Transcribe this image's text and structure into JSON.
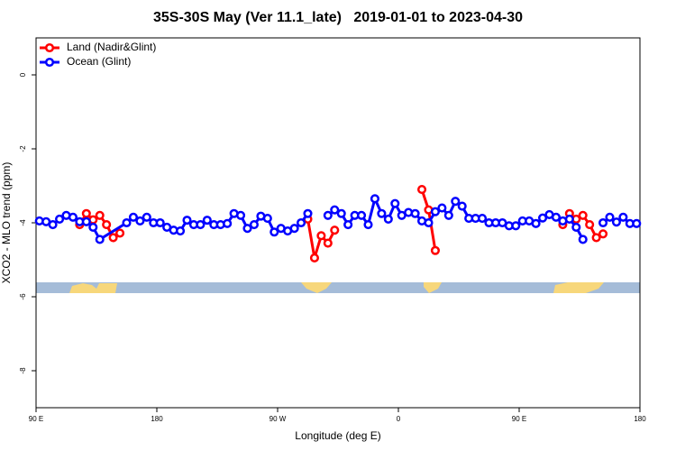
{
  "chart_data": {
    "type": "line",
    "title": "35S-30S May (Ver 11.1_late)   2019-01-01 to 2023-04-30",
    "xlabel": "Longitude (deg E)",
    "ylabel": "XCO2 - MLO trend (ppm)",
    "xlim": [
      90,
      540
    ],
    "xticks": [
      {
        "value": 90,
        "label": "90 E"
      },
      {
        "value": 180,
        "label": "180"
      },
      {
        "value": 270,
        "label": "90 W"
      },
      {
        "value": 360,
        "label": "0"
      },
      {
        "value": 450,
        "label": "90 E"
      },
      {
        "value": 540,
        "label": "180"
      }
    ],
    "ylim": [
      -9,
      1
    ],
    "yticks": [
      0,
      -2,
      -4,
      -6,
      -8
    ],
    "legend": "topleft",
    "series": [
      {
        "name": "Land (Nadir&Glint)",
        "color": "#ff0000",
        "x": [
          122.5,
          127.5,
          132.5,
          137.5,
          142.5,
          147.5,
          152.5,
          157.5,
          292.5,
          297.5,
          302.5,
          307.5,
          312.5,
          317.5,
          377.5,
          382.5,
          387.5,
          392.5,
          482.5,
          487.5,
          492.5,
          497.5,
          502.5,
          507.5,
          512.5
        ],
        "values": [
          -4.05,
          -3.75,
          -3.92,
          -3.8,
          -4.05,
          -4.4,
          -4.28,
          null,
          -3.9,
          -4.95,
          -4.35,
          -4.55,
          -4.2,
          null,
          -3.1,
          -3.65,
          -4.75,
          null,
          -4.05,
          -3.75,
          -3.9,
          -3.8,
          -4.05,
          -4.4,
          -4.3
        ]
      },
      {
        "name": "Ocean (Glint)",
        "color": "#0000ff",
        "x": [
          92.5,
          97.5,
          102.5,
          107.5,
          112.5,
          117.5,
          122.5,
          127.5,
          132.5,
          137.5,
          157.5,
          162.5,
          167.5,
          172.5,
          177.5,
          182.5,
          187.5,
          192.5,
          197.5,
          202.5,
          207.5,
          212.5,
          217.5,
          222.5,
          227.5,
          232.5,
          237.5,
          242.5,
          247.5,
          252.5,
          257.5,
          262.5,
          267.5,
          272.5,
          277.5,
          282.5,
          287.5,
          292.5,
          297.5,
          307.5,
          312.5,
          317.5,
          322.5,
          327.5,
          332.5,
          337.5,
          342.5,
          347.5,
          352.5,
          357.5,
          362.5,
          367.5,
          372.5,
          377.5,
          382.5,
          387.5,
          392.5,
          397.5,
          402.5,
          407.5,
          412.5,
          417.5,
          422.5,
          427.5,
          432.5,
          437.5,
          442.5,
          447.5,
          452.5,
          457.5,
          462.5,
          467.5,
          472.5,
          477.5,
          482.5,
          487.5,
          492.5,
          497.5,
          502.5,
          512.5,
          517.5,
          522.5,
          527.5,
          532.5,
          537.5
        ],
        "values": [
          -3.95,
          -3.97,
          -4.05,
          -3.9,
          -3.8,
          -3.85,
          -3.97,
          -3.97,
          -4.12,
          -4.45,
          -4.0,
          -3.85,
          -3.95,
          -3.85,
          -4.0,
          -4.0,
          -4.12,
          -4.2,
          -4.22,
          -3.93,
          -4.05,
          -4.05,
          -3.93,
          -4.05,
          -4.05,
          -4.02,
          -3.75,
          -3.8,
          -4.15,
          -4.05,
          -3.82,
          -3.88,
          -4.25,
          -4.15,
          -4.22,
          -4.15,
          -4.0,
          -3.75,
          null,
          -3.8,
          -3.65,
          -3.75,
          -4.05,
          -3.8,
          -3.8,
          -4.05,
          -3.35,
          -3.75,
          -3.9,
          -3.48,
          -3.8,
          -3.72,
          -3.75,
          -3.95,
          -4.0,
          -3.7,
          -3.6,
          -3.8,
          -3.42,
          -3.55,
          -3.88,
          -3.88,
          -3.88,
          -4.0,
          -4.0,
          -4.0,
          -4.08,
          -4.08,
          -3.95,
          -3.95,
          -4.02,
          -3.87,
          -3.78,
          -3.85,
          -3.95,
          -3.9,
          -4.12,
          -4.45,
          null,
          -4.0,
          -3.85,
          -3.98,
          -3.85,
          -4.02,
          -4.02
        ]
      }
    ]
  }
}
